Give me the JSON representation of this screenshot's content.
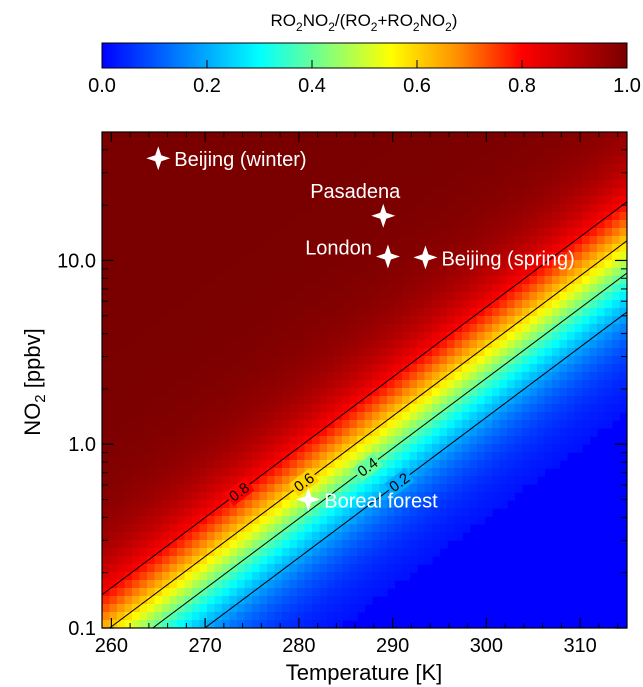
{
  "chart_data": {
    "type": "heatmap",
    "colorbar": {
      "title": "RO2NO2/(RO2+RO2NO2)",
      "range": [
        0.0,
        1.0
      ],
      "ticks": [
        0.0,
        0.2,
        0.4,
        0.6,
        0.8,
        1.0
      ],
      "tick_labels": [
        "0.0",
        "0.2",
        "0.4",
        "0.6",
        "0.8",
        "1.0"
      ],
      "colormap": "rainbow (blue-cyan-yellow-red-dark red)"
    },
    "xlabel": "Temperature [K]",
    "ylabel": "NO2 [ppbv]",
    "xlim": [
      259,
      315
    ],
    "ylim": [
      0.1,
      50
    ],
    "yscale": "log",
    "xticks": [
      260,
      270,
      280,
      290,
      300,
      310
    ],
    "xtick_labels": [
      "260",
      "270",
      "280",
      "290",
      "300",
      "310"
    ],
    "yticks": [
      0.1,
      1.0,
      10.0
    ],
    "ytick_labels": [
      "0.1",
      "1.0",
      "10.0"
    ],
    "contour_levels": [
      0.2,
      0.4,
      0.6,
      0.8
    ],
    "contour_labels": [
      "0.2",
      "0.4",
      "0.6",
      "0.8"
    ],
    "points": [
      {
        "label": "Beijing (winter)",
        "x": 265,
        "y": 36,
        "label_side": "right"
      },
      {
        "label": "Pasadena",
        "x": 289,
        "y": 17.5,
        "label_side": "above"
      },
      {
        "label": "London",
        "x": 289.5,
        "y": 10.5,
        "label_side": "left"
      },
      {
        "label": "Beijing (spring)",
        "x": 293.5,
        "y": 10.4,
        "label_side": "right"
      },
      {
        "label": "Boreal forest",
        "x": 281,
        "y": 0.5,
        "label_side": "right"
      }
    ]
  }
}
